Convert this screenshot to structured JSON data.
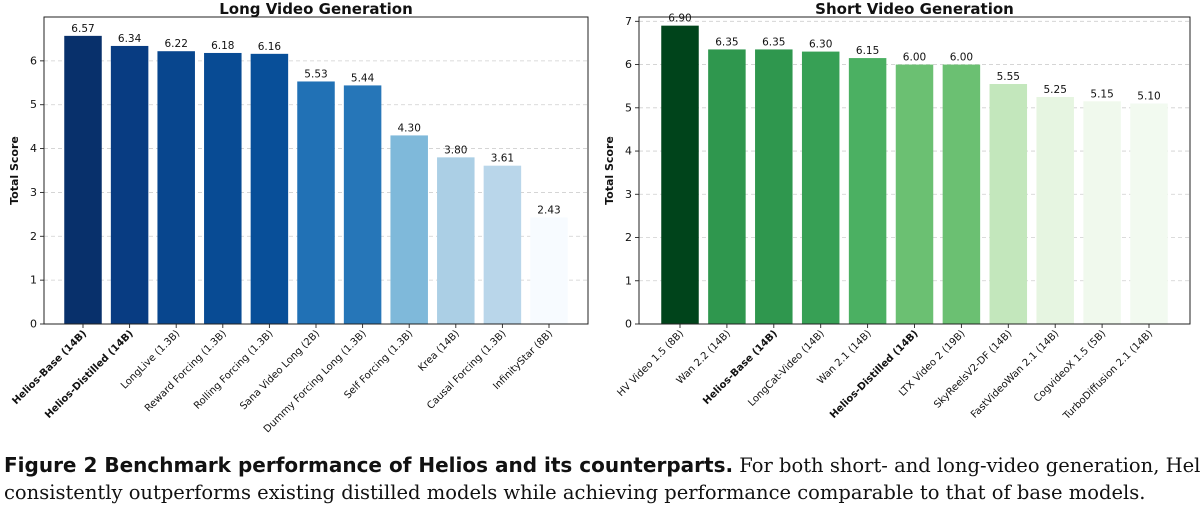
{
  "chart_data": [
    {
      "type": "bar",
      "title": "Long Video Generation",
      "xlabel": "",
      "ylabel": "Total Score",
      "ylim": [
        0,
        7
      ],
      "yticks": [
        0,
        1,
        2,
        3,
        4,
        5,
        6
      ],
      "grid": "horizontal dashed",
      "categories": [
        "Helios-Base (14B)",
        "Helios-Distilled (14B)",
        "LongLive (1.3B)",
        "Reward Forcing (1.3B)",
        "Rolling Forcing (1.3B)",
        "Sana Video Long (2B)",
        "Dummy Forcing Long (1.3B)",
        "Self Forcing (1.3B)",
        "Krea (14B)",
        "Causal Forcing (1.3B)",
        "InfinityStar (8B)"
      ],
      "bold_categories": [
        "Helios-Base (14B)",
        "Helios-Distilled (14B)"
      ],
      "values": [
        6.57,
        6.34,
        6.22,
        6.18,
        6.16,
        5.53,
        5.44,
        4.3,
        3.8,
        3.61,
        2.43
      ],
      "value_labels": [
        "6.57",
        "6.34",
        "6.22",
        "6.18",
        "6.16",
        "5.53",
        "5.44",
        "4.30",
        "3.80",
        "3.61",
        "2.43"
      ],
      "colors": [
        "#08306b",
        "#083c82",
        "#08468e",
        "#084b94",
        "#084f99",
        "#2171b5",
        "#2676b8",
        "#7fb9da",
        "#abcfe5",
        "#b9d6ea",
        "#f7fbff"
      ]
    },
    {
      "type": "bar",
      "title": "Short Video Generation",
      "xlabel": "",
      "ylabel": "Total Score",
      "ylim": [
        0,
        7.1
      ],
      "yticks": [
        0,
        1,
        2,
        3,
        4,
        5,
        6,
        7
      ],
      "grid": "horizontal dashed",
      "categories": [
        "HV Video 1.5 (8B)",
        "Wan 2.2 (14B)",
        "Helios-Base (14B)",
        "LongCat-Video (14B)",
        "Wan 2.1 (14B)",
        "Helios-Distilled (14B)",
        "LTX Video 2 (19B)",
        "SkyReelsV2-DF (14B)",
        "FastVideoWan 2.1 (14B)",
        "CogvideoX 1.5 (5B)",
        "TurboDiffusion 2.1 (14B)"
      ],
      "bold_categories": [
        "Helios-Base (14B)",
        "Helios-Distilled (14B)"
      ],
      "values": [
        6.9,
        6.35,
        6.35,
        6.3,
        6.15,
        6.0,
        6.0,
        5.55,
        5.25,
        5.15,
        5.1
      ],
      "value_labels": [
        "6.90",
        "6.35",
        "6.35",
        "6.30",
        "6.15",
        "6.00",
        "6.00",
        "5.55",
        "5.25",
        "5.15",
        "5.10"
      ],
      "colors": [
        "#00441b",
        "#2f974e",
        "#2f974e",
        "#37a055",
        "#4bb062",
        "#6bc072",
        "#6bc072",
        "#c3e7bc",
        "#e6f5e1",
        "#f0f9ed",
        "#f2faf0"
      ]
    }
  ],
  "caption": {
    "lead": "Figure 2  Benchmark performance of Helios and its counterparts.",
    "text_line1": " For both short- and long-video generation, Helios",
    "text_line2": "consistently outperforms existing distilled models while achieving performance comparable to that of base models."
  }
}
